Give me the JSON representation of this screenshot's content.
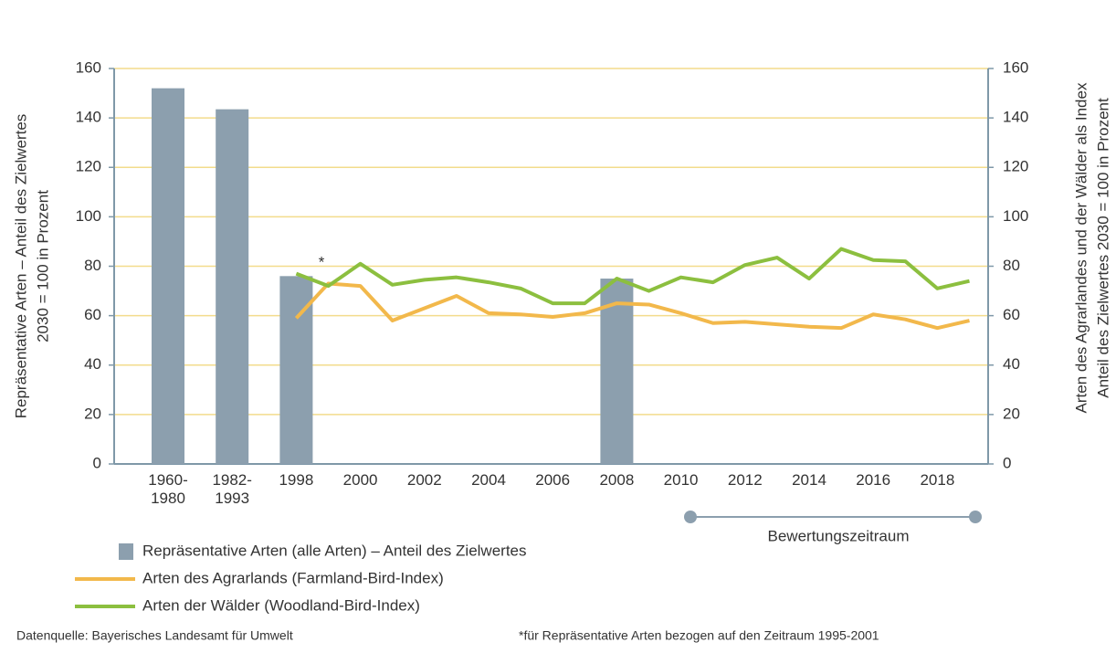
{
  "chart_data": {
    "type": "bar+line",
    "ylabel": [
      "Repräsentative Arten – Anteil des Zielwertes",
      "2030 = 100 in Prozent"
    ],
    "y2label": [
      "Arten des Agrarlandes und der Wälder als Index",
      "Anteil des Zielwertes 2030 = 100 in Prozent"
    ],
    "categories": [
      "1960-\n1980",
      null,
      "1982-\n1993",
      null,
      "1998",
      null,
      "2000",
      null,
      "2002",
      null,
      "2004",
      null,
      "2006",
      null,
      "2008",
      null,
      "2010",
      null,
      "2012",
      null,
      "2014",
      null,
      "2016",
      null,
      "2018",
      null
    ],
    "series": [
      {
        "name": "Repräsentative Arten (alle Arten) – Anteil des Zielwertes",
        "type": "bar",
        "axis": "y",
        "color": "#8c9fae",
        "values": [
          152,
          null,
          143.5,
          null,
          76,
          null,
          null,
          null,
          null,
          null,
          null,
          null,
          null,
          null,
          75,
          null,
          null,
          null,
          null,
          null,
          null,
          null,
          null,
          null,
          null,
          null
        ]
      },
      {
        "name": "Arten des Agrarlands (Farmland-Bird-Index)",
        "type": "line",
        "axis": "y2",
        "color": "#f2b84b",
        "values": [
          null,
          null,
          null,
          null,
          59,
          73,
          72,
          58,
          63,
          68,
          61,
          60.5,
          59.5,
          61,
          65,
          64.5,
          61,
          57,
          57.5,
          56.5,
          55.5,
          55,
          60.5,
          58.5,
          55,
          58
        ]
      },
      {
        "name": "Arten der Wälder (Woodland-Bird-Index)",
        "type": "line",
        "axis": "y2",
        "color": "#8cbf3f",
        "values": [
          null,
          null,
          null,
          null,
          77,
          72,
          81,
          72.5,
          74.5,
          75.5,
          73.5,
          71,
          65,
          65,
          75,
          70,
          75.5,
          73.5,
          80.5,
          83.5,
          75,
          87,
          82.5,
          82,
          71,
          74
        ]
      }
    ],
    "ylim": [
      0,
      160
    ],
    "yticks": [
      0,
      20,
      40,
      60,
      80,
      100,
      120,
      140,
      160
    ],
    "y2lim": [
      0,
      160
    ],
    "y2ticks": [
      0,
      20,
      40,
      60,
      80,
      100,
      120,
      140,
      160
    ],
    "grid": true,
    "grid_color": "#f3dc8c",
    "axis_color": "#7f98a8",
    "annotation": "*",
    "period_label": "Bewertungszeitraum",
    "source": "Datenquelle: Bayerisches Landesamt für Umwelt",
    "footnote": "*für Repräsentative Arten bezogen auf den Zeitraum 1995-2001"
  }
}
